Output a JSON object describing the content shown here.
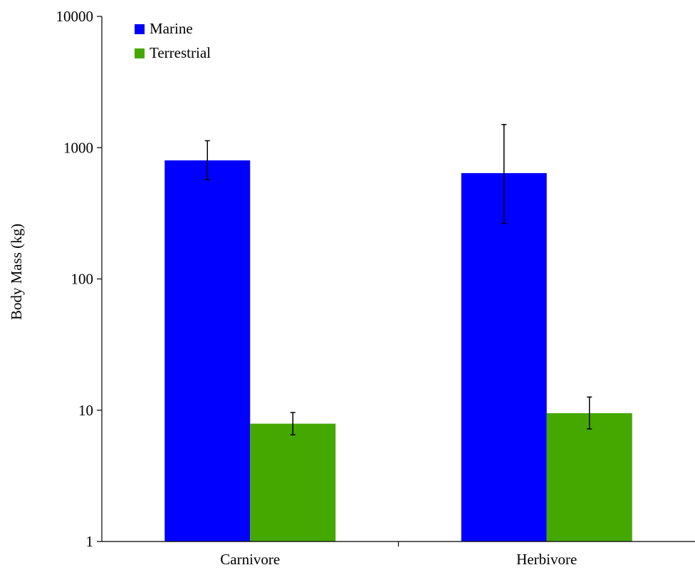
{
  "chart_data": {
    "type": "bar",
    "y_scale": "log",
    "ylim": [
      1,
      10000
    ],
    "yticks": [
      "1",
      "10",
      "100",
      "1000",
      "10000"
    ],
    "ylabel": "Body Mass (kg)",
    "xlabel": "",
    "title": "",
    "categories": [
      "Carnivore",
      "Herbivore"
    ],
    "legend_position": "top-left",
    "grid": false,
    "series": [
      {
        "name": "Marine",
        "color": "#0000ff",
        "values": [
          800,
          640
        ],
        "error_low": [
          570,
          265
        ],
        "error_high": [
          1130,
          1500
        ]
      },
      {
        "name": "Terrestrial",
        "color": "#44a800",
        "values": [
          7.9,
          9.5
        ],
        "error_low": [
          6.5,
          7.2
        ],
        "error_high": [
          9.6,
          12.6
        ]
      }
    ]
  }
}
